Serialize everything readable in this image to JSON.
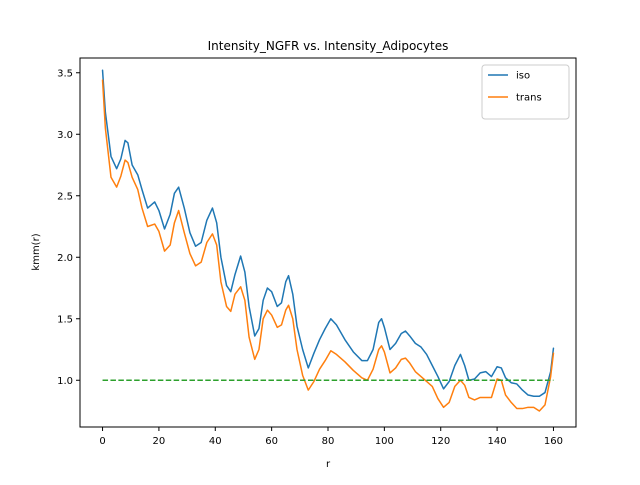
{
  "chart_data": {
    "type": "line",
    "title": "Intensity_NGFR vs. Intensity_Adipocytes",
    "xlabel": "r",
    "ylabel": "kmm(r)",
    "xlim": [
      -8,
      168
    ],
    "ylim": [
      0.62,
      3.62
    ],
    "xticks": [
      0,
      20,
      40,
      60,
      80,
      100,
      120,
      140,
      160
    ],
    "yticks": [
      1.0,
      1.5,
      2.0,
      2.5,
      3.0,
      3.5
    ],
    "ytick_labels": [
      "1.0",
      "1.5",
      "2.0",
      "2.5",
      "3.0",
      "3.5"
    ],
    "grid": false,
    "legend_position": "top-right",
    "series": [
      {
        "name": "iso",
        "color": "#1f77b4",
        "style": "solid",
        "points": [
          [
            0,
            3.52
          ],
          [
            1,
            3.18
          ],
          [
            3,
            2.82
          ],
          [
            5,
            2.72
          ],
          [
            6.5,
            2.8
          ],
          [
            8,
            2.95
          ],
          [
            9,
            2.93
          ],
          [
            10.5,
            2.75
          ],
          [
            12.5,
            2.67
          ],
          [
            14,
            2.55
          ],
          [
            16,
            2.4
          ],
          [
            18.5,
            2.45
          ],
          [
            20,
            2.38
          ],
          [
            22,
            2.23
          ],
          [
            24,
            2.35
          ],
          [
            25.5,
            2.52
          ],
          [
            27,
            2.57
          ],
          [
            29,
            2.4
          ],
          [
            31,
            2.2
          ],
          [
            33,
            2.09
          ],
          [
            35,
            2.12
          ],
          [
            37,
            2.3
          ],
          [
            39,
            2.4
          ],
          [
            40.5,
            2.28
          ],
          [
            42,
            2.0
          ],
          [
            44,
            1.77
          ],
          [
            45.5,
            1.72
          ],
          [
            47,
            1.86
          ],
          [
            49,
            2.01
          ],
          [
            50.5,
            1.88
          ],
          [
            52,
            1.6
          ],
          [
            54,
            1.36
          ],
          [
            55.5,
            1.42
          ],
          [
            57,
            1.65
          ],
          [
            58.5,
            1.75
          ],
          [
            60,
            1.72
          ],
          [
            62,
            1.6
          ],
          [
            63.5,
            1.63
          ],
          [
            65,
            1.8
          ],
          [
            66,
            1.85
          ],
          [
            67.5,
            1.7
          ],
          [
            69,
            1.44
          ],
          [
            71,
            1.25
          ],
          [
            73,
            1.1
          ],
          [
            75,
            1.22
          ],
          [
            77,
            1.33
          ],
          [
            79,
            1.42
          ],
          [
            81,
            1.5
          ],
          [
            83,
            1.45
          ],
          [
            86,
            1.33
          ],
          [
            89,
            1.23
          ],
          [
            92,
            1.16
          ],
          [
            94,
            1.16
          ],
          [
            96,
            1.25
          ],
          [
            98,
            1.47
          ],
          [
            99,
            1.5
          ],
          [
            100,
            1.43
          ],
          [
            102,
            1.25
          ],
          [
            104,
            1.3
          ],
          [
            106,
            1.38
          ],
          [
            107.5,
            1.4
          ],
          [
            109,
            1.36
          ],
          [
            111,
            1.3
          ],
          [
            113,
            1.27
          ],
          [
            115,
            1.21
          ],
          [
            117,
            1.12
          ],
          [
            119,
            1.03
          ],
          [
            121,
            0.93
          ],
          [
            123,
            0.99
          ],
          [
            125,
            1.12
          ],
          [
            127,
            1.21
          ],
          [
            128.5,
            1.12
          ],
          [
            130,
            1.0
          ],
          [
            132,
            1.01
          ],
          [
            134,
            1.06
          ],
          [
            136,
            1.07
          ],
          [
            138,
            1.03
          ],
          [
            140,
            1.11
          ],
          [
            141.5,
            1.1
          ],
          [
            143,
            1.02
          ],
          [
            145,
            0.98
          ],
          [
            147,
            0.97
          ],
          [
            149,
            0.92
          ],
          [
            151,
            0.88
          ],
          [
            153,
            0.87
          ],
          [
            155,
            0.87
          ],
          [
            157,
            0.9
          ],
          [
            159,
            1.07
          ],
          [
            160,
            1.26
          ]
        ]
      },
      {
        "name": "trans",
        "color": "#ff7f0e",
        "style": "solid",
        "points": [
          [
            0,
            3.44
          ],
          [
            1,
            3.05
          ],
          [
            3,
            2.65
          ],
          [
            5,
            2.57
          ],
          [
            6.5,
            2.66
          ],
          [
            8,
            2.79
          ],
          [
            9,
            2.77
          ],
          [
            10.5,
            2.65
          ],
          [
            12.5,
            2.55
          ],
          [
            14,
            2.4
          ],
          [
            16,
            2.25
          ],
          [
            18.5,
            2.27
          ],
          [
            20,
            2.21
          ],
          [
            22,
            2.05
          ],
          [
            24,
            2.1
          ],
          [
            25.5,
            2.28
          ],
          [
            27,
            2.38
          ],
          [
            29,
            2.2
          ],
          [
            31,
            2.03
          ],
          [
            33,
            1.93
          ],
          [
            35,
            1.96
          ],
          [
            37,
            2.12
          ],
          [
            39,
            2.19
          ],
          [
            40.5,
            2.1
          ],
          [
            42,
            1.8
          ],
          [
            44,
            1.6
          ],
          [
            45.5,
            1.56
          ],
          [
            47,
            1.7
          ],
          [
            49,
            1.76
          ],
          [
            50.5,
            1.65
          ],
          [
            52,
            1.35
          ],
          [
            54,
            1.17
          ],
          [
            55.5,
            1.25
          ],
          [
            57,
            1.5
          ],
          [
            58.5,
            1.57
          ],
          [
            60,
            1.53
          ],
          [
            62,
            1.43
          ],
          [
            63.5,
            1.45
          ],
          [
            65,
            1.57
          ],
          [
            66,
            1.61
          ],
          [
            67.5,
            1.5
          ],
          [
            69,
            1.25
          ],
          [
            71,
            1.04
          ],
          [
            73,
            0.92
          ],
          [
            75,
            0.99
          ],
          [
            77,
            1.09
          ],
          [
            79,
            1.16
          ],
          [
            81,
            1.24
          ],
          [
            83,
            1.21
          ],
          [
            86,
            1.15
          ],
          [
            89,
            1.08
          ],
          [
            92,
            1.02
          ],
          [
            94,
            1.0
          ],
          [
            96,
            1.09
          ],
          [
            98,
            1.25
          ],
          [
            99,
            1.28
          ],
          [
            100,
            1.23
          ],
          [
            102,
            1.06
          ],
          [
            104,
            1.1
          ],
          [
            106,
            1.17
          ],
          [
            107.5,
            1.18
          ],
          [
            109,
            1.14
          ],
          [
            111,
            1.07
          ],
          [
            113,
            1.03
          ],
          [
            115,
            0.99
          ],
          [
            117,
            0.95
          ],
          [
            119,
            0.85
          ],
          [
            121,
            0.78
          ],
          [
            123,
            0.82
          ],
          [
            125,
            0.95
          ],
          [
            127,
            1.0
          ],
          [
            128.5,
            0.96
          ],
          [
            130,
            0.86
          ],
          [
            132,
            0.84
          ],
          [
            134,
            0.86
          ],
          [
            136,
            0.86
          ],
          [
            138,
            0.86
          ],
          [
            140,
            1.01
          ],
          [
            141.5,
            1.0
          ],
          [
            143,
            0.88
          ],
          [
            145,
            0.82
          ],
          [
            147,
            0.77
          ],
          [
            149,
            0.77
          ],
          [
            151,
            0.78
          ],
          [
            153,
            0.78
          ],
          [
            155,
            0.75
          ],
          [
            157,
            0.8
          ],
          [
            159,
            1.03
          ],
          [
            160,
            1.22
          ]
        ]
      },
      {
        "name": "",
        "color": "#2ca02c",
        "style": "dashed",
        "points": [
          [
            0,
            1.0
          ],
          [
            160,
            1.0
          ]
        ]
      }
    ]
  }
}
